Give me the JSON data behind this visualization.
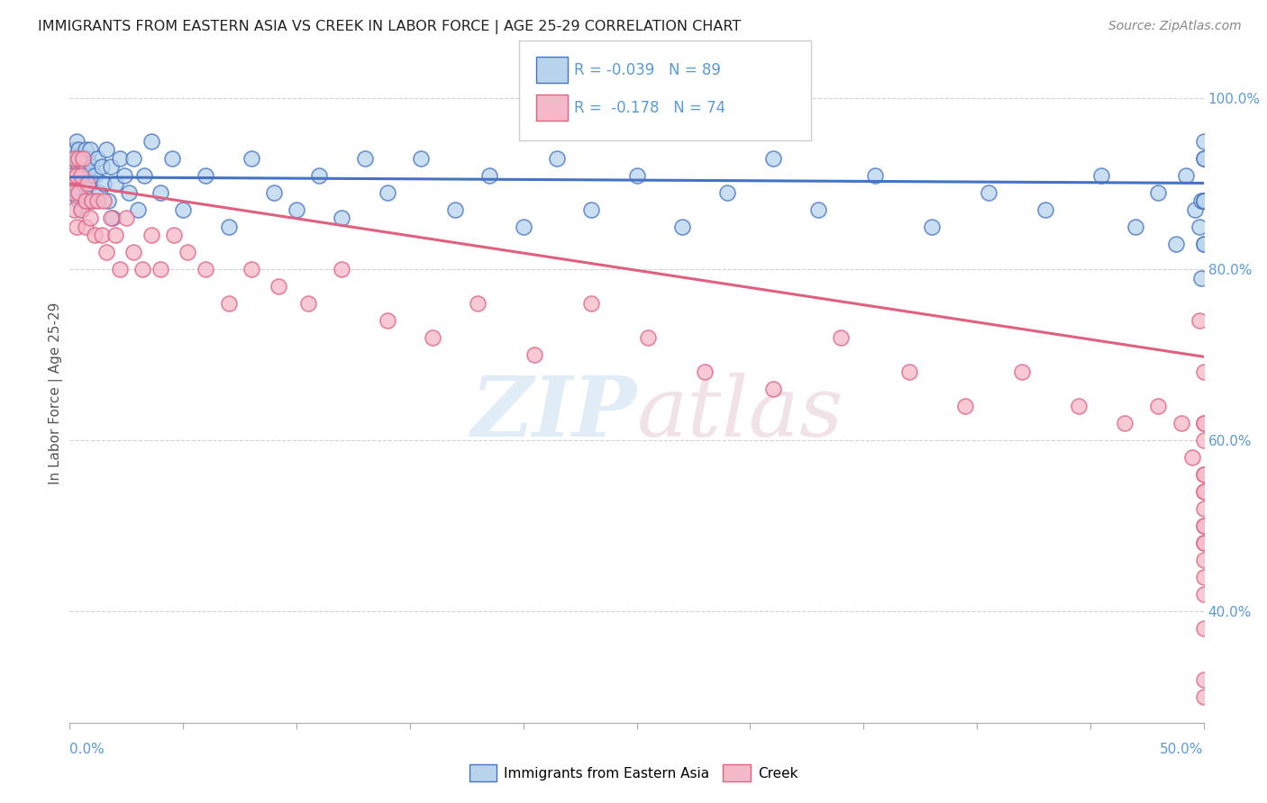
{
  "title": "IMMIGRANTS FROM EASTERN ASIA VS CREEK IN LABOR FORCE | AGE 25-29 CORRELATION CHART",
  "source": "Source: ZipAtlas.com",
  "ylabel": "In Labor Force | Age 25-29",
  "legend_label1": "Immigrants from Eastern Asia",
  "legend_label2": "Creek",
  "R1": -0.039,
  "N1": 89,
  "R2": -0.178,
  "N2": 74,
  "blue_color": "#b8d4ec",
  "pink_color": "#f5b8c8",
  "blue_line_color": "#4472c4",
  "pink_line_color": "#e06080",
  "axis_label_color": "#5b9bd5",
  "watermark_zip": "ZIP",
  "watermark_atlas": "atlas",
  "xlim": [
    0.0,
    0.5
  ],
  "ylim": [
    0.27,
    1.04
  ],
  "blue_trend_x": [
    0.0,
    0.5
  ],
  "blue_trend_y": [
    0.908,
    0.901
  ],
  "pink_trend_x": [
    0.0,
    0.5
  ],
  "pink_trend_y": [
    0.9,
    0.698
  ],
  "ytick_vals": [
    1.0,
    0.8,
    0.6,
    0.4
  ],
  "ytick_labels": [
    "100.0%",
    "80.0%",
    "60.0%",
    "40.0%"
  ],
  "blue_x": [
    0.001,
    0.001,
    0.001,
    0.002,
    0.002,
    0.002,
    0.003,
    0.003,
    0.003,
    0.003,
    0.004,
    0.004,
    0.004,
    0.005,
    0.005,
    0.005,
    0.006,
    0.006,
    0.007,
    0.007,
    0.007,
    0.008,
    0.008,
    0.009,
    0.009,
    0.01,
    0.01,
    0.011,
    0.012,
    0.013,
    0.014,
    0.015,
    0.016,
    0.017,
    0.018,
    0.019,
    0.02,
    0.022,
    0.024,
    0.026,
    0.028,
    0.03,
    0.033,
    0.036,
    0.04,
    0.045,
    0.05,
    0.06,
    0.07,
    0.08,
    0.09,
    0.1,
    0.11,
    0.12,
    0.13,
    0.14,
    0.155,
    0.17,
    0.185,
    0.2,
    0.215,
    0.23,
    0.25,
    0.27,
    0.29,
    0.31,
    0.33,
    0.355,
    0.38,
    0.405,
    0.43,
    0.455,
    0.47,
    0.48,
    0.488,
    0.492,
    0.496,
    0.498,
    0.499,
    0.499,
    0.5,
    0.5,
    0.5,
    0.5,
    0.5,
    0.5,
    0.5,
    0.5,
    0.5
  ],
  "blue_y": [
    0.93,
    0.91,
    0.89,
    0.94,
    0.92,
    0.9,
    0.93,
    0.91,
    0.89,
    0.95,
    0.94,
    0.92,
    0.88,
    0.93,
    0.91,
    0.87,
    0.92,
    0.9,
    0.94,
    0.92,
    0.88,
    0.93,
    0.91,
    0.94,
    0.9,
    0.92,
    0.88,
    0.91,
    0.93,
    0.89,
    0.92,
    0.9,
    0.94,
    0.88,
    0.92,
    0.86,
    0.9,
    0.93,
    0.91,
    0.89,
    0.93,
    0.87,
    0.91,
    0.95,
    0.89,
    0.93,
    0.87,
    0.91,
    0.85,
    0.93,
    0.89,
    0.87,
    0.91,
    0.86,
    0.93,
    0.89,
    0.93,
    0.87,
    0.91,
    0.85,
    0.93,
    0.87,
    0.91,
    0.85,
    0.89,
    0.93,
    0.87,
    0.91,
    0.85,
    0.89,
    0.87,
    0.91,
    0.85,
    0.89,
    0.83,
    0.91,
    0.87,
    0.85,
    0.79,
    0.88,
    0.93,
    0.88,
    0.83,
    0.88,
    0.93,
    0.88,
    0.95,
    0.83,
    0.88
  ],
  "pink_x": [
    0.001,
    0.001,
    0.002,
    0.002,
    0.003,
    0.003,
    0.004,
    0.004,
    0.005,
    0.005,
    0.006,
    0.007,
    0.007,
    0.008,
    0.009,
    0.01,
    0.011,
    0.012,
    0.014,
    0.015,
    0.016,
    0.018,
    0.02,
    0.022,
    0.025,
    0.028,
    0.032,
    0.036,
    0.04,
    0.046,
    0.052,
    0.06,
    0.07,
    0.08,
    0.092,
    0.105,
    0.12,
    0.14,
    0.16,
    0.18,
    0.205,
    0.23,
    0.255,
    0.28,
    0.31,
    0.34,
    0.37,
    0.395,
    0.42,
    0.445,
    0.465,
    0.48,
    0.49,
    0.495,
    0.498,
    0.5,
    0.5,
    0.5,
    0.5,
    0.5,
    0.5,
    0.5,
    0.5,
    0.5,
    0.5,
    0.5,
    0.5,
    0.5,
    0.5,
    0.5,
    0.5,
    0.5,
    0.5,
    0.5
  ],
  "pink_y": [
    0.91,
    0.89,
    0.93,
    0.87,
    0.91,
    0.85,
    0.93,
    0.89,
    0.91,
    0.87,
    0.93,
    0.85,
    0.88,
    0.9,
    0.86,
    0.88,
    0.84,
    0.88,
    0.84,
    0.88,
    0.82,
    0.86,
    0.84,
    0.8,
    0.86,
    0.82,
    0.8,
    0.84,
    0.8,
    0.84,
    0.82,
    0.8,
    0.76,
    0.8,
    0.78,
    0.76,
    0.8,
    0.74,
    0.72,
    0.76,
    0.7,
    0.76,
    0.72,
    0.68,
    0.66,
    0.72,
    0.68,
    0.64,
    0.68,
    0.64,
    0.62,
    0.64,
    0.62,
    0.58,
    0.74,
    0.68,
    0.62,
    0.54,
    0.48,
    0.56,
    0.62,
    0.5,
    0.44,
    0.54,
    0.38,
    0.5,
    0.6,
    0.52,
    0.42,
    0.48,
    0.56,
    0.32,
    0.46,
    0.3
  ]
}
